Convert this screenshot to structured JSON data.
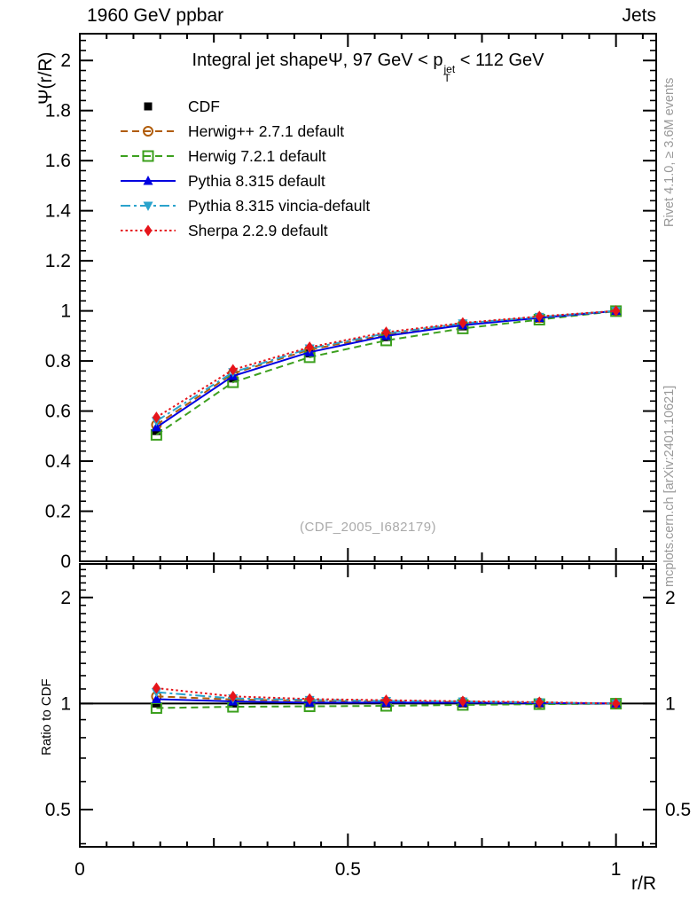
{
  "header": {
    "left": "1960 GeV ppbar",
    "right": "Jets"
  },
  "main_title": {
    "pre": "Integral jet shapeΨ, 97 GeV < p",
    "sup": "jet",
    "sub": "T",
    "post": " < 112 GeV"
  },
  "watermark": "(CDF_2005_I682179)",
  "side_notes": {
    "top": "Rivet 4.1.0, ≥ 3.6M events",
    "bottom": "mcplots.cern.ch [arXiv:2401.10621]"
  },
  "axes": {
    "main_ylabel": "Ψ(r/R)",
    "ratio_ylabel": "Ratio to CDF",
    "xlabel": "r/R"
  },
  "colors": {
    "cdf": "#000000",
    "herwigpp": "#b05c0a",
    "herwig7": "#3ca01e",
    "pythia": "#0000e0",
    "vincia": "#2aa3cc",
    "sherpa": "#e6141a",
    "note_gray": "#999999",
    "watermark_gray": "#aaaaaa"
  },
  "chart_data": {
    "type": "line",
    "title": "Integral jet shapeΨ, 97 GeV < p_T^jet < 112 GeV",
    "xlabel": "r/R",
    "x": [
      0.1429,
      0.2857,
      0.4286,
      0.5714,
      0.7143,
      0.8571,
      1.0
    ],
    "xlim": [
      0,
      1.075
    ],
    "x_major_ticks": [
      {
        "v": 0,
        "label": "0"
      },
      {
        "v": 0.5,
        "label": "0.5"
      },
      {
        "v": 1,
        "label": "1"
      }
    ],
    "x_medium_ticks": [
      0.25,
      0.75
    ],
    "x_minor_step": 0.05,
    "main_panel": {
      "ylabel": "Ψ(r/R)",
      "scale": "linear",
      "ylim": [
        0,
        2.107
      ],
      "yticks": [
        {
          "v": 0,
          "label": "0"
        },
        {
          "v": 0.2,
          "label": "0.2"
        },
        {
          "v": 0.4,
          "label": "0.4"
        },
        {
          "v": 0.6,
          "label": "0.6"
        },
        {
          "v": 0.8,
          "label": "0.8"
        },
        {
          "v": 1,
          "label": "1"
        },
        {
          "v": 1.2,
          "label": "1.2"
        },
        {
          "v": 1.4,
          "label": "1.4"
        },
        {
          "v": 1.6,
          "label": "1.6"
        },
        {
          "v": 1.8,
          "label": "1.8"
        },
        {
          "v": 2,
          "label": "2"
        }
      ],
      "y_minor_step": 0.04
    },
    "ratio_panel": {
      "ylabel": "Ratio to CDF",
      "scale": "log",
      "ylim": [
        0.392,
        2.49
      ],
      "yticks": [
        {
          "v": 0.5,
          "label": "0.5"
        },
        {
          "v": 1,
          "label": "1"
        },
        {
          "v": 2,
          "label": "2"
        }
      ],
      "y_minor": [
        0.4,
        0.6,
        0.7,
        0.8,
        0.9,
        1.1,
        1.2,
        1.3,
        1.4,
        1.5,
        1.6,
        1.7,
        1.8,
        1.9,
        2.1,
        2.2,
        2.3,
        2.4
      ],
      "reference_line": 1
    },
    "series": [
      {
        "name": "CDF",
        "color": "#000000",
        "marker": "square-filled",
        "line": "none",
        "values": [
          0.52,
          0.73,
          0.83,
          0.895,
          0.938,
          0.969,
          1.0
        ],
        "ratio": [
          1,
          1,
          1,
          1,
          1,
          1,
          1
        ]
      },
      {
        "name": "Herwig++ 2.7.1 default",
        "color": "#b05c0a",
        "marker": "circle-open",
        "line": "dashed",
        "values": [
          0.545,
          0.75,
          0.845,
          0.905,
          0.947,
          0.973,
          1.0
        ],
        "ratio": [
          1.048,
          1.027,
          1.018,
          1.011,
          1.01,
          1.004,
          1.0
        ]
      },
      {
        "name": "Herwig 7.2.1 default",
        "color": "#3ca01e",
        "marker": "square-open",
        "line": "dashed",
        "values": [
          0.505,
          0.715,
          0.815,
          0.882,
          0.93,
          0.965,
          0.999
        ],
        "ratio": [
          0.971,
          0.979,
          0.982,
          0.985,
          0.991,
          0.996,
          0.999
        ]
      },
      {
        "name": "Pythia 8.315 default",
        "color": "#0000e0",
        "marker": "triangle-up",
        "line": "solid",
        "values": [
          0.535,
          0.74,
          0.835,
          0.9,
          0.943,
          0.972,
          1.0
        ],
        "ratio": [
          1.029,
          1.014,
          1.006,
          1.006,
          1.005,
          1.003,
          1.0
        ]
      },
      {
        "name": "Pythia 8.315 vincia-default",
        "color": "#2aa3cc",
        "marker": "triangle-down",
        "line": "dashdot",
        "values": [
          0.56,
          0.755,
          0.85,
          0.91,
          0.95,
          0.976,
          1.0
        ],
        "ratio": [
          1.077,
          1.034,
          1.024,
          1.017,
          1.013,
          1.007,
          1.0
        ]
      },
      {
        "name": "Sherpa 2.2.9 default",
        "color": "#e6141a",
        "marker": "diamond",
        "line": "dotted",
        "values": [
          0.575,
          0.765,
          0.855,
          0.915,
          0.952,
          0.978,
          1.0
        ],
        "ratio": [
          1.106,
          1.048,
          1.03,
          1.022,
          1.015,
          1.009,
          1.0
        ]
      }
    ]
  }
}
